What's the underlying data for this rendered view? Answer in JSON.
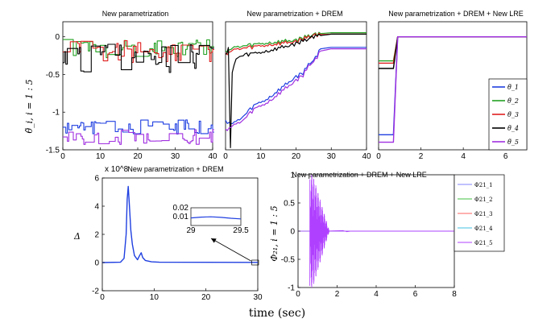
{
  "chart_data": [
    {
      "id": "p1",
      "type": "line",
      "title": "New parametrization",
      "ylabel": "θ̃_i,  i = 1 : 5",
      "xlim": [
        0,
        40
      ],
      "ylim": [
        -1.5,
        0.2
      ],
      "xticks": [
        "0",
        "10",
        "20",
        "30",
        "40"
      ],
      "yticks": [
        "0",
        "-0.5",
        "-1",
        "-1.5"
      ],
      "series": [
        {
          "name": "θ̃_1",
          "color": "#1f3fe0",
          "kind": "noisy",
          "base": -1.2,
          "amp": 0.1,
          "seed": 11
        },
        {
          "name": "θ̃_2",
          "color": "#22a022",
          "kind": "noisy",
          "base": -0.15,
          "amp": 0.13,
          "seed": 23
        },
        {
          "name": "θ̃_3",
          "color": "#e02020",
          "kind": "noisy",
          "base": -0.2,
          "amp": 0.15,
          "seed": 37
        },
        {
          "name": "θ̃_4",
          "color": "#000000",
          "kind": "noisy",
          "base": -0.28,
          "amp": 0.2,
          "seed": 51
        },
        {
          "name": "θ̃_5",
          "color": "#a030e0",
          "kind": "noisy",
          "base": -1.33,
          "amp": 0.1,
          "seed": 67
        }
      ]
    },
    {
      "id": "p2",
      "type": "line",
      "title": "New parametrization + DREM",
      "xlim": [
        0,
        40
      ],
      "ylim": [
        -1.7,
        0.05
      ],
      "xticks": [
        "0",
        "10",
        "20",
        "30",
        "40"
      ],
      "yticks": [],
      "series": [
        {
          "name": "θ̃_1",
          "color": "#1f3fe0",
          "pts": [
            [
              0,
              -1.3
            ],
            [
              2,
              -1.35
            ],
            [
              5,
              -1.25
            ],
            [
              8,
              -1.1
            ],
            [
              12,
              -1.0
            ],
            [
              16,
              -0.85
            ],
            [
              20,
              -0.7
            ],
            [
              22,
              -0.65
            ],
            [
              24,
              -0.5
            ],
            [
              25,
              -0.48
            ],
            [
              27,
              -0.32
            ],
            [
              30,
              -0.3
            ],
            [
              40,
              -0.3
            ]
          ]
        },
        {
          "name": "θ̃_2",
          "color": "#22a022",
          "pts": [
            [
              0,
              -0.35
            ],
            [
              3,
              -0.3
            ],
            [
              10,
              -0.25
            ],
            [
              20,
              -0.2
            ],
            [
              25,
              -0.12
            ],
            [
              30,
              -0.1
            ],
            [
              40,
              -0.1
            ]
          ]
        },
        {
          "name": "θ̃_3",
          "color": "#e02020",
          "pts": [
            [
              0,
              -0.38
            ],
            [
              3,
              -0.33
            ],
            [
              10,
              -0.28
            ],
            [
              20,
              -0.22
            ],
            [
              25,
              -0.13
            ],
            [
              30,
              -0.12
            ],
            [
              40,
              -0.12
            ]
          ]
        },
        {
          "name": "θ̃_4",
          "color": "#000000",
          "pts": [
            [
              0,
              -0.4
            ],
            [
              0.8,
              -0.3
            ],
            [
              1.4,
              -1.68
            ],
            [
              1.9,
              -0.65
            ],
            [
              3,
              -0.45
            ],
            [
              6,
              -0.4
            ],
            [
              12,
              -0.35
            ],
            [
              20,
              -0.25
            ],
            [
              25,
              -0.15
            ],
            [
              30,
              -0.12
            ],
            [
              40,
              -0.12
            ]
          ]
        },
        {
          "name": "θ̃_5",
          "color": "#a030e0",
          "pts": [
            [
              0,
              -1.42
            ],
            [
              2,
              -1.38
            ],
            [
              5,
              -1.3
            ],
            [
              8,
              -1.15
            ],
            [
              12,
              -1.05
            ],
            [
              16,
              -0.9
            ],
            [
              20,
              -0.75
            ],
            [
              22,
              -0.68
            ],
            [
              24,
              -0.52
            ],
            [
              25,
              -0.5
            ],
            [
              27,
              -0.35
            ],
            [
              30,
              -0.32
            ],
            [
              40,
              -0.32
            ]
          ]
        }
      ]
    },
    {
      "id": "p3",
      "type": "line",
      "title": "New parametrization + DREM + New LRE",
      "xlim": [
        0,
        7
      ],
      "ylim": [
        -1.5,
        0.2
      ],
      "xticks": [
        "0",
        "2",
        "4",
        "6"
      ],
      "yticks": [],
      "series": [
        {
          "name": "θ̃_1",
          "color": "#1f3fe0",
          "pts": [
            [
              0,
              -1.3
            ],
            [
              0.7,
              -1.3
            ],
            [
              0.9,
              0
            ],
            [
              7,
              0
            ]
          ]
        },
        {
          "name": "θ̃_2",
          "color": "#22a022",
          "pts": [
            [
              0,
              -0.32
            ],
            [
              0.7,
              -0.32
            ],
            [
              0.9,
              0
            ],
            [
              7,
              0
            ]
          ]
        },
        {
          "name": "θ̃_3",
          "color": "#e02020",
          "pts": [
            [
              0,
              -0.35
            ],
            [
              0.7,
              -0.35
            ],
            [
              0.9,
              0
            ],
            [
              7,
              0
            ]
          ]
        },
        {
          "name": "θ̃_4",
          "color": "#000000",
          "pts": [
            [
              0,
              -0.42
            ],
            [
              0.7,
              -0.42
            ],
            [
              0.9,
              0
            ],
            [
              7,
              0
            ]
          ]
        },
        {
          "name": "θ̃_5",
          "color": "#a030e0",
          "pts": [
            [
              0,
              -1.4
            ],
            [
              0.7,
              -1.4
            ],
            [
              0.9,
              0
            ],
            [
              7,
              0
            ]
          ]
        }
      ],
      "legend": [
        "θ̃_1",
        "θ̃_2",
        "θ̃_3",
        "θ̃_4",
        "θ̃_5"
      ]
    },
    {
      "id": "p4",
      "type": "line",
      "title": "New parametrization + DREM",
      "ylabel": "Δ",
      "exponent": "x 10^8",
      "xlim": [
        0,
        30
      ],
      "ylim": [
        -2,
        6
      ],
      "xticks": [
        "0",
        "10",
        "20",
        "30"
      ],
      "yticks": [
        "6",
        "4",
        "2",
        "0",
        "-2"
      ],
      "series": [
        {
          "name": "Δ",
          "color": "#1f3fe0",
          "pts": [
            [
              0,
              0
            ],
            [
              3.5,
              0.02
            ],
            [
              4.2,
              0.3
            ],
            [
              4.6,
              2.0
            ],
            [
              4.8,
              4.5
            ],
            [
              5.0,
              5.4
            ],
            [
              5.2,
              4.2
            ],
            [
              5.5,
              2.3
            ],
            [
              5.8,
              1.3
            ],
            [
              6.2,
              0.5
            ],
            [
              6.8,
              0.2
            ],
            [
              7.2,
              0.5
            ],
            [
              7.5,
              0.7
            ],
            [
              7.8,
              0.35
            ],
            [
              8.3,
              0.15
            ],
            [
              9.5,
              0.05
            ],
            [
              11,
              0.02
            ],
            [
              30,
              0.01
            ]
          ]
        }
      ],
      "inset": {
        "xlim": [
          29,
          29.5
        ],
        "ylim": [
          0,
          0.02
        ],
        "xticks": [
          "29",
          "29.5"
        ],
        "yticks": [
          "0.02",
          "0.01"
        ],
        "pts": [
          [
            29,
            0.0085
          ],
          [
            29.1,
            0.0095
          ],
          [
            29.2,
            0.0098
          ],
          [
            29.3,
            0.0092
          ],
          [
            29.4,
            0.0082
          ],
          [
            29.5,
            0.0075
          ]
        ]
      }
    },
    {
      "id": "p5",
      "type": "line",
      "title": "New parametrization + DREM + New LRE",
      "ylabel": "Φ₂₁,  i = 1 : 5",
      "xlim": [
        0,
        8
      ],
      "ylim": [
        -1,
        1
      ],
      "xticks": [
        "0",
        "2",
        "4",
        "6",
        "8"
      ],
      "yticks": [
        "1",
        "0.5",
        "0",
        "-0.5",
        "-1"
      ],
      "series": [
        {
          "name": "Φ21_1",
          "color": "#8080ff"
        },
        {
          "name": "Φ21_2",
          "color": "#40c040"
        },
        {
          "name": "Φ21_3",
          "color": "#ff6060"
        },
        {
          "name": "Φ21_4",
          "color": "#40c0e0"
        },
        {
          "name": "Φ21_5",
          "color": "#b040ff"
        }
      ],
      "legend": [
        "Φ21_1",
        "Φ21_2",
        "Φ21_3",
        "Φ21_4",
        "Φ21_5"
      ],
      "burst": {
        "start": 0.6,
        "end": 1.6,
        "amp": 1
      }
    }
  ],
  "common": {
    "xlabel": "time (sec)"
  }
}
